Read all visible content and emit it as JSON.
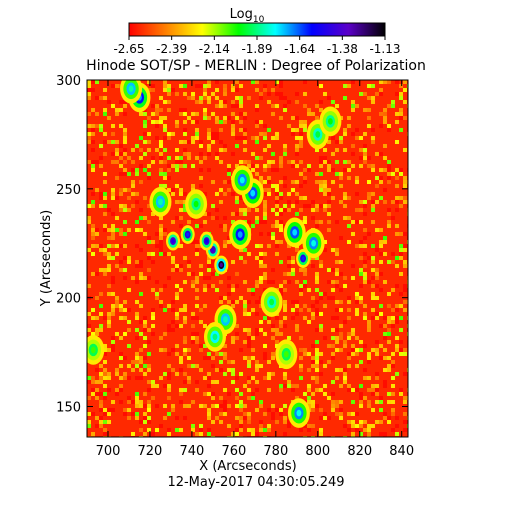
{
  "chart_data": {
    "type": "heatmap",
    "title": "Hinode SOT/SP - MERLIN : Degree of Polarization",
    "xlabel": "X (Arcseconds)",
    "ylabel": "Y (Arcseconds)",
    "timestamp": "12-May-2017 04:30:05.249",
    "xlim": [
      690,
      843
    ],
    "ylim": [
      136,
      300
    ],
    "x_ticks": [
      700,
      720,
      740,
      760,
      780,
      800,
      820,
      840
    ],
    "y_ticks": [
      150,
      200,
      250,
      300
    ],
    "colorbar": {
      "label_main": "Log",
      "label_sub": "10",
      "range": [
        -2.65,
        -1.13
      ],
      "ticks": [
        "-2.65",
        "-2.39",
        "-2.14",
        "-1.89",
        "-1.64",
        "-1.38",
        "-1.13"
      ],
      "colormap": [
        "#ff0000",
        "#ff7f00",
        "#ffff00",
        "#00ff00",
        "#00ffff",
        "#0000ff",
        "#5b00c8",
        "#000000"
      ]
    },
    "background_level": -2.58,
    "features": [
      {
        "x": 754,
        "y": 215,
        "peak": -1.3
      },
      {
        "x": 750,
        "y": 222,
        "peak": -1.45
      },
      {
        "x": 747,
        "y": 226,
        "peak": -1.55
      },
      {
        "x": 731,
        "y": 226,
        "peak": -1.5
      },
      {
        "x": 738,
        "y": 229,
        "peak": -1.6
      },
      {
        "x": 763,
        "y": 229,
        "peak": -1.7
      },
      {
        "x": 769,
        "y": 248,
        "peak": -1.75
      },
      {
        "x": 764,
        "y": 254,
        "peak": -1.8
      },
      {
        "x": 793,
        "y": 218,
        "peak": -1.6
      },
      {
        "x": 789,
        "y": 230,
        "peak": -1.75
      },
      {
        "x": 798,
        "y": 225,
        "peak": -1.8
      },
      {
        "x": 715,
        "y": 292,
        "peak": -1.7
      },
      {
        "x": 711,
        "y": 296,
        "peak": -1.85
      },
      {
        "x": 725,
        "y": 244,
        "peak": -1.85
      },
      {
        "x": 756,
        "y": 190,
        "peak": -1.85
      },
      {
        "x": 751,
        "y": 182,
        "peak": -1.9
      },
      {
        "x": 791,
        "y": 147,
        "peak": -1.8
      },
      {
        "x": 800,
        "y": 275,
        "peak": -1.95
      },
      {
        "x": 778,
        "y": 198,
        "peak": -1.95
      },
      {
        "x": 742,
        "y": 243,
        "peak": -2.0
      },
      {
        "x": 806,
        "y": 281,
        "peak": -2.0
      },
      {
        "x": 785,
        "y": 174,
        "peak": -2.05
      },
      {
        "x": 693,
        "y": 176,
        "peak": -2.05
      }
    ]
  }
}
